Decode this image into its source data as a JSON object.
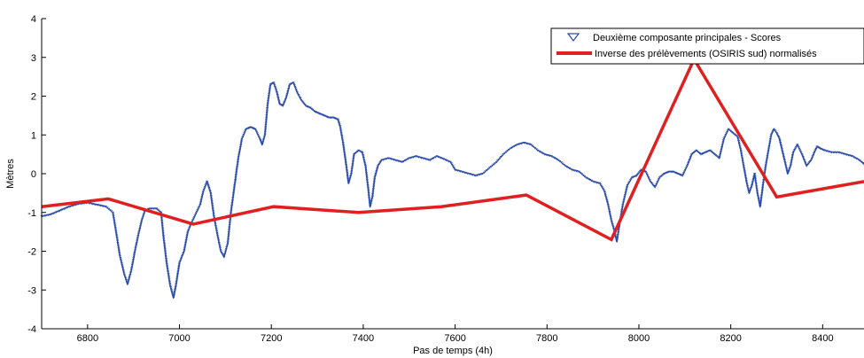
{
  "chart_data": {
    "type": "line",
    "xlabel": "Pas de temps (4h)",
    "ylabel": "Mètres",
    "xlim": [
      6700,
      8490
    ],
    "ylim": [
      -4,
      4
    ],
    "x_ticks": [
      6800,
      7000,
      7200,
      7400,
      7600,
      7800,
      8000,
      8200,
      8400
    ],
    "y_ticks": [
      -4,
      -3,
      -2,
      -1,
      0,
      1,
      2,
      3,
      4
    ],
    "grid": false,
    "legend_position": "top-right",
    "series": [
      {
        "name": "Deuxième composante principales - Scores",
        "kind": "scatter",
        "marker": "triangle-down",
        "color": "#2a4aa8",
        "points": [
          [
            6700,
            -1.1
          ],
          [
            6720,
            -1.05
          ],
          [
            6740,
            -0.95
          ],
          [
            6760,
            -0.85
          ],
          [
            6780,
            -0.78
          ],
          [
            6800,
            -0.75
          ],
          [
            6820,
            -0.8
          ],
          [
            6840,
            -0.85
          ],
          [
            6855,
            -1.0
          ],
          [
            6862,
            -1.5
          ],
          [
            6870,
            -2.1
          ],
          [
            6880,
            -2.6
          ],
          [
            6887,
            -2.85
          ],
          [
            6895,
            -2.5
          ],
          [
            6903,
            -2.0
          ],
          [
            6910,
            -1.6
          ],
          [
            6918,
            -1.2
          ],
          [
            6925,
            -0.95
          ],
          [
            6935,
            -0.9
          ],
          [
            6950,
            -0.9
          ],
          [
            6960,
            -1.0
          ],
          [
            6965,
            -1.6
          ],
          [
            6972,
            -2.3
          ],
          [
            6980,
            -2.9
          ],
          [
            6987,
            -3.2
          ],
          [
            6992,
            -2.9
          ],
          [
            7000,
            -2.3
          ],
          [
            7010,
            -2.0
          ],
          [
            7018,
            -1.5
          ],
          [
            7025,
            -1.3
          ],
          [
            7035,
            -1.05
          ],
          [
            7045,
            -0.8
          ],
          [
            7052,
            -0.45
          ],
          [
            7060,
            -0.2
          ],
          [
            7068,
            -0.5
          ],
          [
            7075,
            -1.1
          ],
          [
            7083,
            -1.6
          ],
          [
            7090,
            -2.0
          ],
          [
            7097,
            -2.15
          ],
          [
            7105,
            -1.8
          ],
          [
            7112,
            -1.0
          ],
          [
            7120,
            -0.3
          ],
          [
            7128,
            0.4
          ],
          [
            7136,
            0.9
          ],
          [
            7145,
            1.15
          ],
          [
            7155,
            1.2
          ],
          [
            7165,
            1.15
          ],
          [
            7175,
            0.9
          ],
          [
            7180,
            0.75
          ],
          [
            7186,
            1.0
          ],
          [
            7192,
            1.8
          ],
          [
            7198,
            2.3
          ],
          [
            7205,
            2.35
          ],
          [
            7212,
            2.1
          ],
          [
            7218,
            1.8
          ],
          [
            7225,
            1.75
          ],
          [
            7232,
            1.95
          ],
          [
            7240,
            2.3
          ],
          [
            7248,
            2.35
          ],
          [
            7256,
            2.1
          ],
          [
            7265,
            1.9
          ],
          [
            7275,
            1.75
          ],
          [
            7285,
            1.7
          ],
          [
            7295,
            1.6
          ],
          [
            7305,
            1.55
          ],
          [
            7315,
            1.5
          ],
          [
            7325,
            1.45
          ],
          [
            7335,
            1.45
          ],
          [
            7345,
            1.4
          ],
          [
            7350,
            1.2
          ],
          [
            7356,
            0.8
          ],
          [
            7362,
            0.3
          ],
          [
            7368,
            -0.25
          ],
          [
            7374,
            0.0
          ],
          [
            7380,
            0.5
          ],
          [
            7390,
            0.6
          ],
          [
            7398,
            0.55
          ],
          [
            7405,
            0.2
          ],
          [
            7410,
            -0.3
          ],
          [
            7415,
            -0.85
          ],
          [
            7420,
            -0.6
          ],
          [
            7425,
            -0.1
          ],
          [
            7432,
            0.2
          ],
          [
            7440,
            0.35
          ],
          [
            7455,
            0.4
          ],
          [
            7470,
            0.35
          ],
          [
            7485,
            0.3
          ],
          [
            7500,
            0.4
          ],
          [
            7515,
            0.45
          ],
          [
            7530,
            0.4
          ],
          [
            7545,
            0.35
          ],
          [
            7560,
            0.45
          ],
          [
            7575,
            0.38
          ],
          [
            7590,
            0.3
          ],
          [
            7600,
            0.1
          ],
          [
            7615,
            0.05
          ],
          [
            7630,
            0.0
          ],
          [
            7645,
            -0.05
          ],
          [
            7660,
            0.0
          ],
          [
            7675,
            0.15
          ],
          [
            7690,
            0.3
          ],
          [
            7705,
            0.5
          ],
          [
            7720,
            0.65
          ],
          [
            7735,
            0.75
          ],
          [
            7750,
            0.8
          ],
          [
            7765,
            0.75
          ],
          [
            7780,
            0.6
          ],
          [
            7795,
            0.5
          ],
          [
            7810,
            0.45
          ],
          [
            7825,
            0.35
          ],
          [
            7840,
            0.2
          ],
          [
            7855,
            0.1
          ],
          [
            7870,
            0.05
          ],
          [
            7885,
            -0.1
          ],
          [
            7900,
            -0.2
          ],
          [
            7915,
            -0.25
          ],
          [
            7925,
            -0.45
          ],
          [
            7933,
            -0.8
          ],
          [
            7940,
            -1.2
          ],
          [
            7946,
            -1.45
          ],
          [
            7952,
            -1.75
          ],
          [
            7958,
            -1.3
          ],
          [
            7965,
            -0.8
          ],
          [
            7975,
            -0.3
          ],
          [
            7985,
            -0.1
          ],
          [
            7995,
            -0.05
          ],
          [
            8005,
            0.1
          ],
          [
            8015,
            0.05
          ],
          [
            8025,
            -0.2
          ],
          [
            8035,
            -0.35
          ],
          [
            8045,
            -0.1
          ],
          [
            8055,
            0.0
          ],
          [
            8065,
            0.05
          ],
          [
            8075,
            0.05
          ],
          [
            8085,
            0.0
          ],
          [
            8095,
            -0.05
          ],
          [
            8105,
            0.2
          ],
          [
            8115,
            0.5
          ],
          [
            8125,
            0.6
          ],
          [
            8135,
            0.5
          ],
          [
            8145,
            0.55
          ],
          [
            8155,
            0.6
          ],
          [
            8165,
            0.5
          ],
          [
            8175,
            0.4
          ],
          [
            8185,
            0.9
          ],
          [
            8195,
            1.15
          ],
          [
            8205,
            1.05
          ],
          [
            8215,
            0.95
          ],
          [
            8222,
            0.6
          ],
          [
            8228,
            0.2
          ],
          [
            8235,
            -0.25
          ],
          [
            8240,
            -0.5
          ],
          [
            8246,
            -0.3
          ],
          [
            8252,
            0.0
          ],
          [
            8258,
            -0.5
          ],
          [
            8264,
            -0.85
          ],
          [
            8270,
            -0.3
          ],
          [
            8276,
            0.2
          ],
          [
            8282,
            0.6
          ],
          [
            8288,
            1.0
          ],
          [
            8294,
            1.15
          ],
          [
            8300,
            1.05
          ],
          [
            8306,
            0.9
          ],
          [
            8312,
            0.6
          ],
          [
            8318,
            0.3
          ],
          [
            8324,
            0.0
          ],
          [
            8330,
            0.2
          ],
          [
            8336,
            0.55
          ],
          [
            8345,
            0.75
          ],
          [
            8355,
            0.5
          ],
          [
            8365,
            0.2
          ],
          [
            8375,
            0.35
          ],
          [
            8382,
            0.55
          ],
          [
            8388,
            0.7
          ],
          [
            8395,
            0.65
          ],
          [
            8405,
            0.6
          ],
          [
            8420,
            0.55
          ],
          [
            8435,
            0.55
          ],
          [
            8450,
            0.5
          ],
          [
            8465,
            0.45
          ],
          [
            8480,
            0.35
          ],
          [
            8490,
            0.25
          ]
        ]
      },
      {
        "name": "Inverse des prélèvements (OSIRIS sud) normalisés",
        "kind": "line",
        "color": "#e02020",
        "points": [
          [
            6700,
            -0.85
          ],
          [
            6845,
            -0.65
          ],
          [
            7030,
            -1.3
          ],
          [
            7205,
            -0.85
          ],
          [
            7390,
            -1.0
          ],
          [
            7570,
            -0.85
          ],
          [
            7755,
            -0.55
          ],
          [
            7940,
            -1.7
          ],
          [
            8120,
            2.95
          ],
          [
            8300,
            -0.6
          ],
          [
            8490,
            -0.2
          ]
        ]
      }
    ]
  }
}
